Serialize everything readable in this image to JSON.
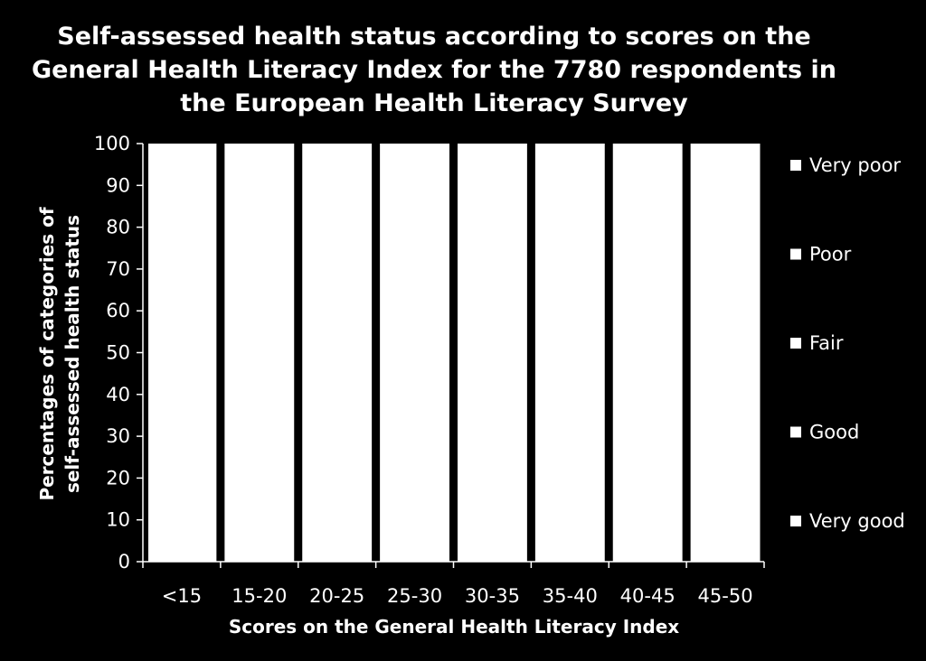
{
  "chart_data": {
    "type": "bar",
    "stacked": true,
    "title_lines": [
      "Self-assessed health status according to scores on the",
      "General Health Literacy Index for the 7780 respondents in",
      "the European Health Literacy Survey"
    ],
    "xlabel": "Scores on the General Health Literacy Index",
    "ylabel_lines": [
      "Percentages of categories of",
      "self-assessed health status"
    ],
    "categories": [
      "<15",
      "15-20",
      "20-25",
      "25-30",
      "30-35",
      "35-40",
      "40-45",
      "45-50"
    ],
    "ylim": [
      0,
      100
    ],
    "yticks": [
      0,
      10,
      20,
      30,
      40,
      50,
      60,
      70,
      80,
      90,
      100
    ],
    "legend_position": "right",
    "legend": [
      "Very poor",
      "Poor",
      "Fair",
      "Good",
      "Very good"
    ],
    "stack_totals": [
      100,
      100,
      100,
      100,
      100,
      100,
      100,
      100
    ],
    "bar_color": "#ffffff",
    "background": "#000000"
  }
}
